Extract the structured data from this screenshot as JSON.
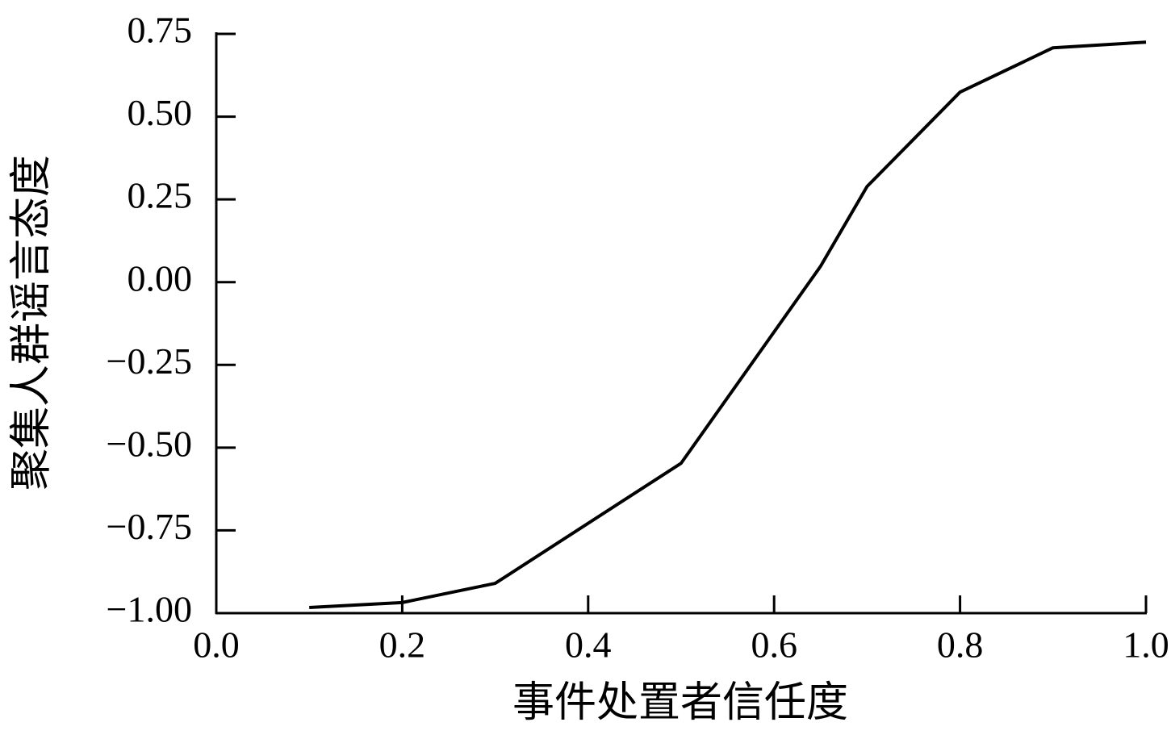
{
  "chart_data": {
    "type": "line",
    "x_label": "事件处置者信任度",
    "y_label": "聚集人群谣言态度",
    "x": [
      0.1,
      0.2,
      0.3,
      0.5,
      0.65,
      0.7,
      0.8,
      0.9,
      1.0
    ],
    "series": [
      {
        "color": "#000000",
        "values": [
          -0.983,
          -0.968,
          -0.91,
          -0.547,
          0.048,
          0.289,
          0.574,
          0.708,
          0.725
        ]
      }
    ],
    "xlim": [
      0,
      1.0
    ],
    "xticks": [
      {
        "value": 0,
        "label": "0.0"
      },
      0.2,
      0.4,
      0.6,
      0.8,
      {
        "value": 1.0,
        "label": "1.0"
      }
    ],
    "ylim": [
      -1.0,
      0.75
    ],
    "yticks": [
      {
        "value": -1.0,
        "label": "−1.00"
      },
      {
        "value": -0.75,
        "label": "−0.75"
      },
      {
        "value": -0.5,
        "label": "−0.50"
      },
      {
        "value": -0.25,
        "label": "−0.25"
      },
      {
        "value": 0,
        "label": "0.00"
      },
      {
        "value": 0.25,
        "label": "0.25"
      },
      {
        "value": 0.5,
        "label": "0.50"
      },
      {
        "value": 0.75,
        "label": "0.75"
      }
    ],
    "grid": false
  }
}
